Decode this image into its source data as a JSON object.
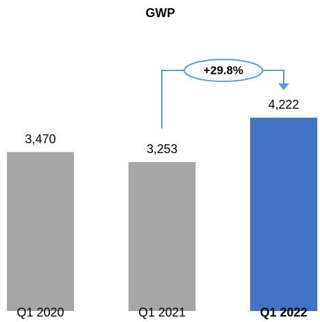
{
  "chart_data": {
    "type": "bar",
    "title": "GWP",
    "categories": [
      "Q1 2020",
      "Q1 2021",
      "Q1 2022"
    ],
    "values": [
      3470,
      3253,
      4222
    ],
    "value_labels": [
      "3,470",
      "3,253",
      "4,222"
    ],
    "colors": [
      "#a6a6a6",
      "#a6a6a6",
      "#4472c4"
    ],
    "ylim": [
      0,
      5000
    ],
    "annotation": "+29.8%"
  }
}
